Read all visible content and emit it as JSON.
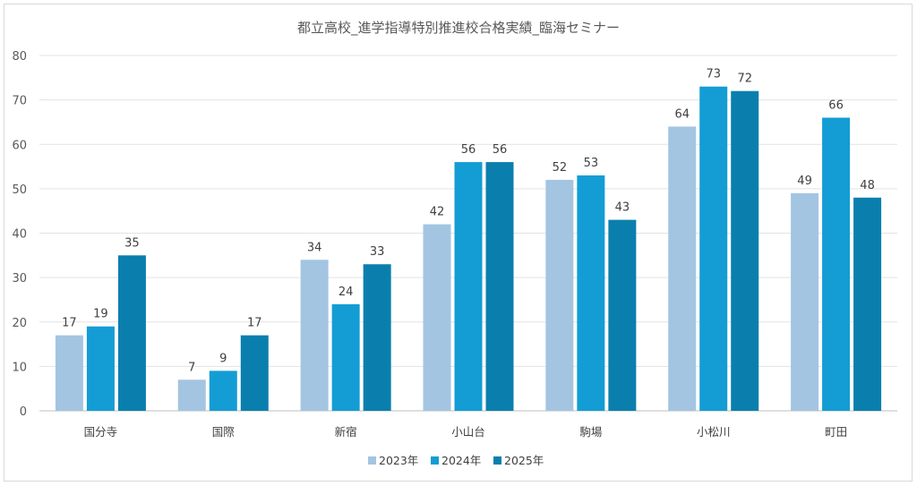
{
  "chart_data": {
    "type": "bar",
    "title": "都立高校_進学指導特別推進校合格実績_臨海セミナー",
    "xlabel": "",
    "ylabel": "",
    "ylim": [
      0,
      80
    ],
    "yticks": [
      0,
      10,
      20,
      30,
      40,
      50,
      60,
      70,
      80
    ],
    "grid": true,
    "legend_position": "bottom",
    "categories": [
      "国分寺",
      "国際",
      "新宿",
      "小山台",
      "駒場",
      "小松川",
      "町田"
    ],
    "series": [
      {
        "name": "2023年",
        "color": "#a3c5e2",
        "values": [
          17,
          7,
          34,
          42,
          52,
          64,
          49
        ]
      },
      {
        "name": "2024年",
        "color": "#139dd4",
        "values": [
          19,
          9,
          24,
          56,
          53,
          73,
          66
        ]
      },
      {
        "name": "2025年",
        "color": "#0a7fae",
        "values": [
          35,
          17,
          33,
          56,
          43,
          72,
          48
        ]
      }
    ]
  }
}
